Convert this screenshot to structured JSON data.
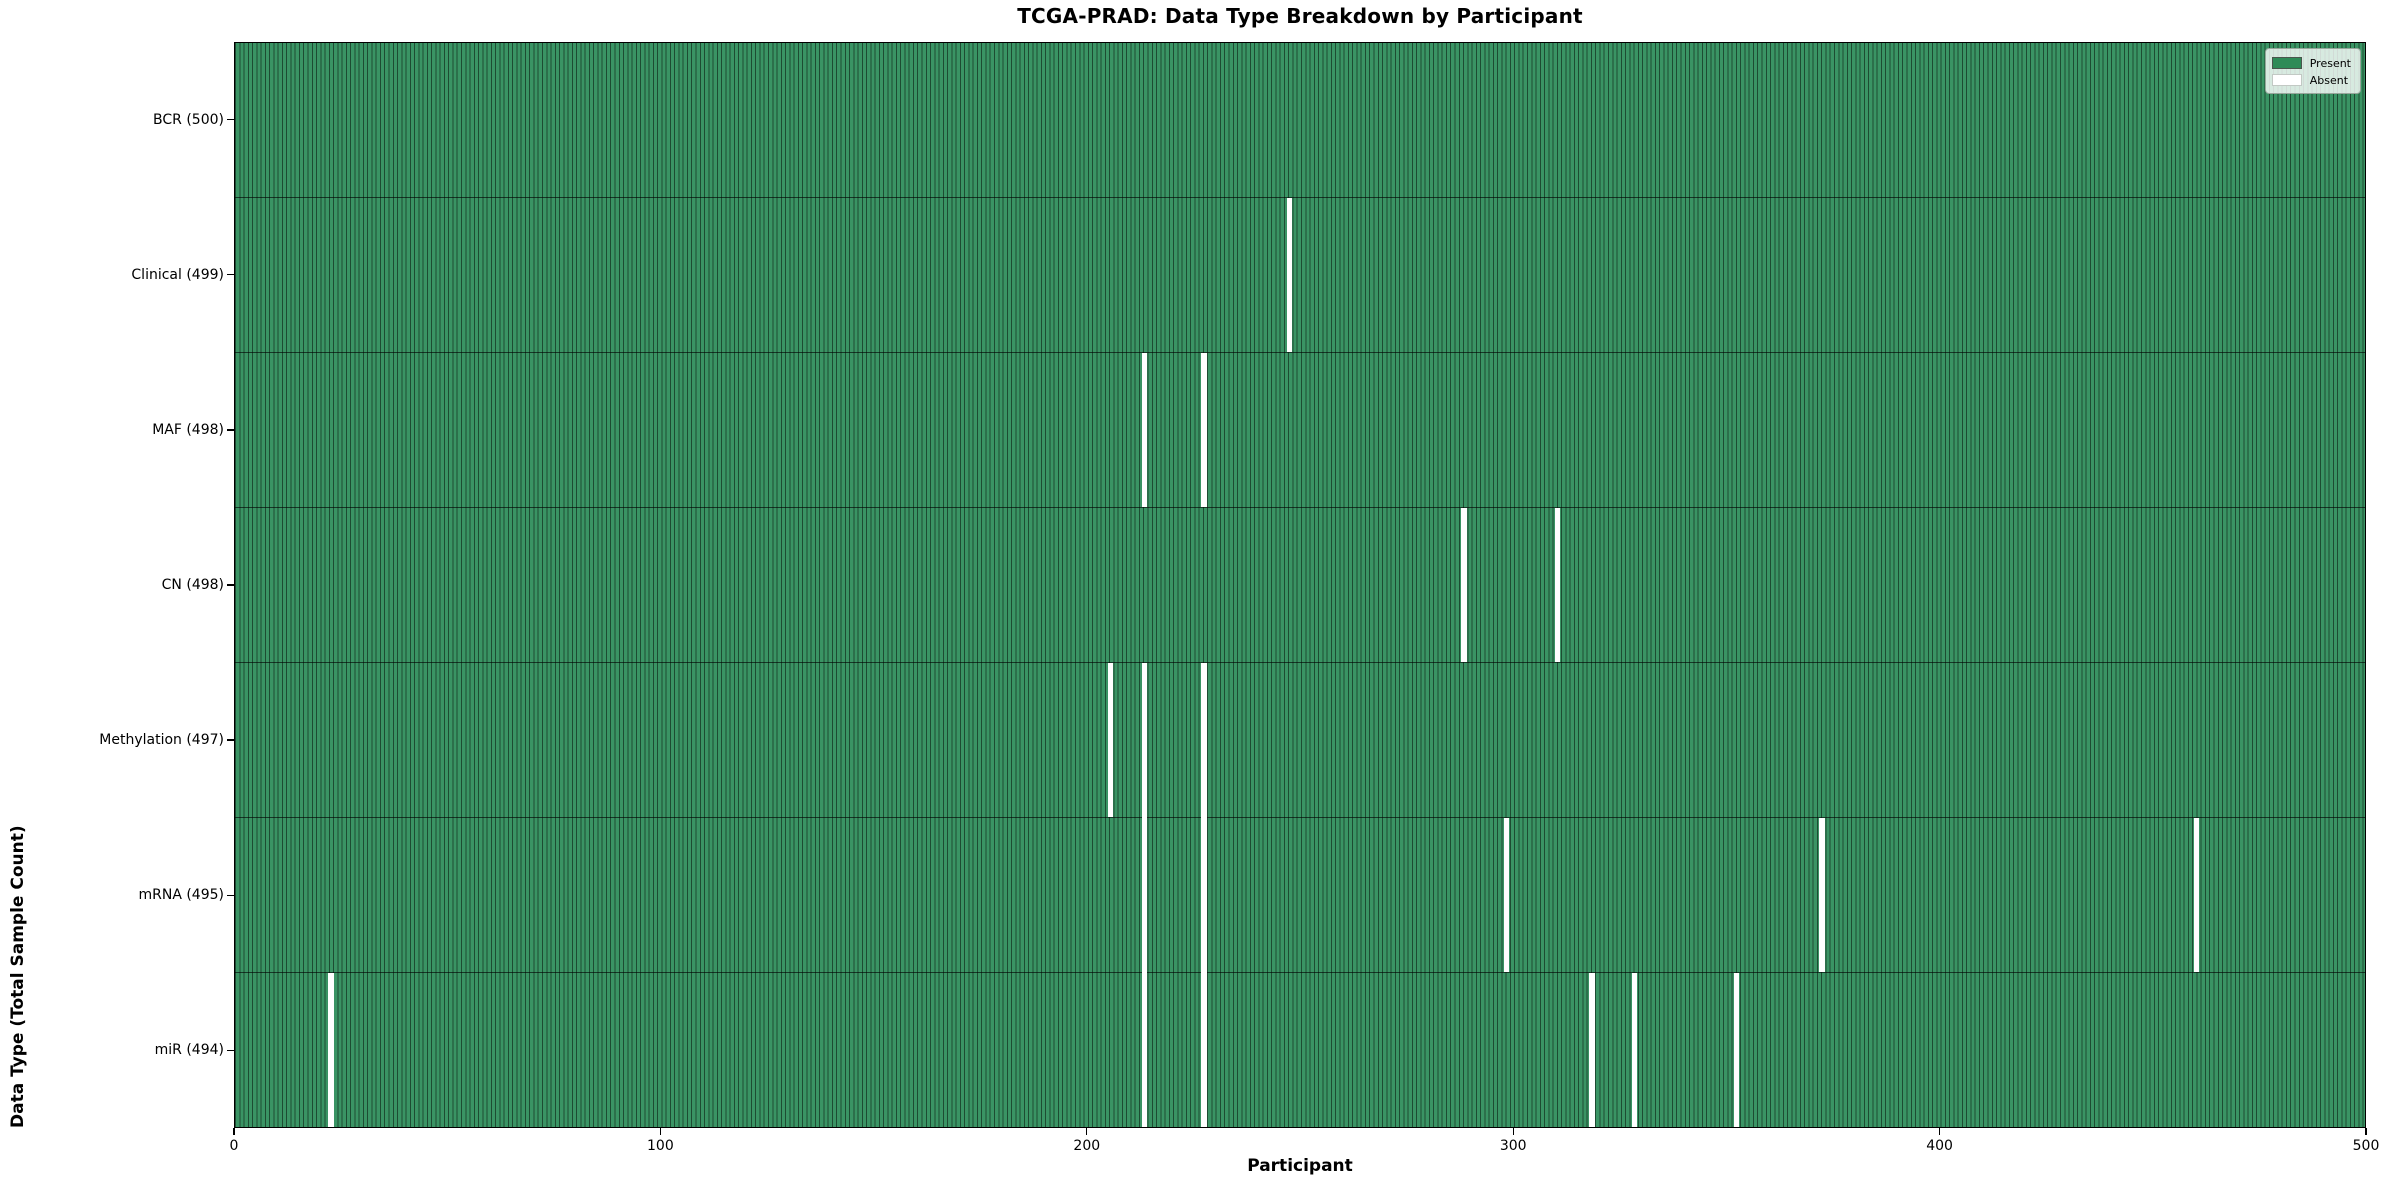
{
  "title": "TCGA-PRAD: Data Type Breakdown by Participant",
  "chart_data": {
    "type": "heatmap",
    "title": "TCGA-PRAD: Data Type Breakdown by Participant",
    "xlabel": "Participant",
    "ylabel": "Data Type (Total Sample Count)",
    "xlim": [
      0,
      500
    ],
    "x_ticks": [
      0,
      100,
      200,
      300,
      400,
      500
    ],
    "n_participants": 500,
    "grid": false,
    "legend_position": "upper right",
    "legend": {
      "entries": [
        {
          "label": "Present",
          "color": "#2e8b57"
        },
        {
          "label": "Absent",
          "color": "#ffffff"
        }
      ]
    },
    "rows": [
      {
        "label": "BCR (500)",
        "data_type": "BCR",
        "total": 500,
        "absent_participants": []
      },
      {
        "label": "Clinical (499)",
        "data_type": "Clinical",
        "total": 499,
        "absent_participants": [
          247
        ]
      },
      {
        "label": "MAF (498)",
        "data_type": "MAF",
        "total": 498,
        "absent_participants": [
          213,
          227
        ]
      },
      {
        "label": "CN (498)",
        "data_type": "CN",
        "total": 498,
        "absent_participants": [
          288,
          310
        ]
      },
      {
        "label": "Methylation (497)",
        "data_type": "Methylation",
        "total": 497,
        "absent_participants": [
          205,
          213,
          227
        ]
      },
      {
        "label": "mRNA (495)",
        "data_type": "mRNA",
        "total": 495,
        "absent_participants": [
          213,
          227,
          298,
          372,
          460
        ]
      },
      {
        "label": "miR (494)",
        "data_type": "miR",
        "total": 494,
        "absent_participants": [
          22,
          213,
          227,
          318,
          328,
          352
        ]
      }
    ],
    "colors": {
      "present_fill": "#3a9464",
      "cell_edge": "#1d4c32",
      "absent": "#ffffff",
      "row_divider": "#000000"
    }
  }
}
